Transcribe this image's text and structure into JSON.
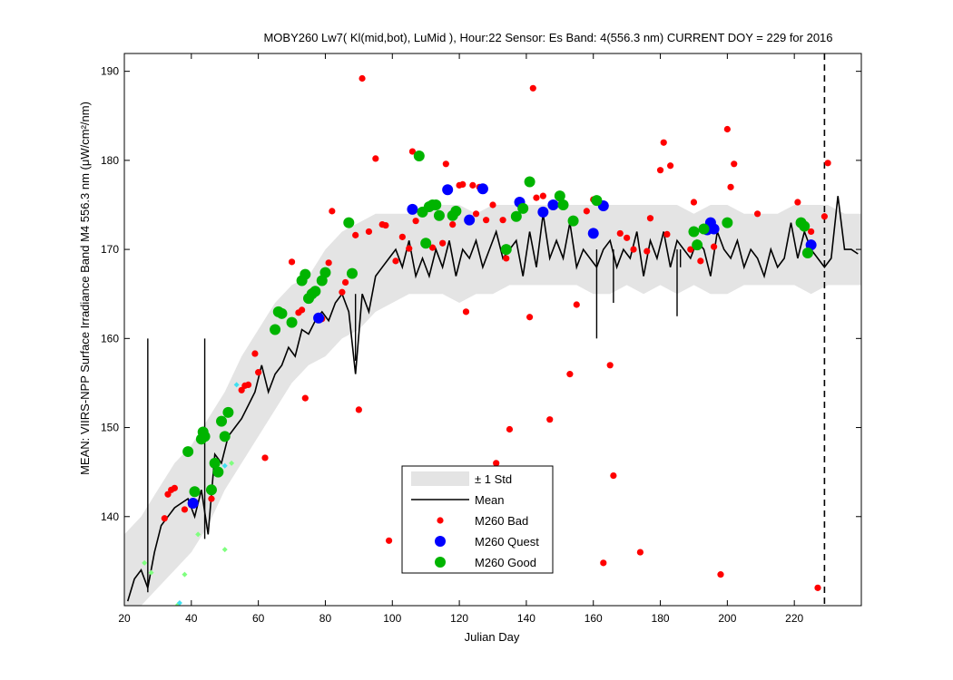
{
  "chart_data": {
    "type": "scatter",
    "title": "MOBY260   Lw7( Kl(mid,bot), LuMid ),   Hour:22 Sensor: Es Band: 4(556.3 nm)   CURRENT DOY = 229 for 2016",
    "xlabel": "Julian Day",
    "ylabel": "MEAN: VIIRS-NPP Surface Irradiance Band M4 556.3 nm (μW/cm²/nm)",
    "xlim": [
      20,
      240
    ],
    "ylim": [
      130,
      192
    ],
    "xticks": [
      20,
      40,
      60,
      80,
      100,
      120,
      140,
      160,
      180,
      200,
      220
    ],
    "yticks": [
      140,
      150,
      160,
      170,
      180,
      190
    ],
    "current_doy": 229,
    "legend": {
      "placement": "lower-center",
      "entries": [
        {
          "label": "± 1 Std",
          "kind": "band",
          "color": "#e4e4e4"
        },
        {
          "label": "Mean",
          "kind": "line",
          "color": "#000000"
        },
        {
          "label": "M260 Bad",
          "kind": "small-dot",
          "color": "#ff0000"
        },
        {
          "label": "M260 Quest",
          "kind": "big-dot",
          "color": "#0000ff"
        },
        {
          "label": "M260 Good",
          "kind": "big-dot",
          "color": "#00b400"
        }
      ]
    },
    "mean": {
      "x": [
        21,
        23,
        25,
        27,
        29,
        31,
        33,
        35,
        37,
        39,
        41,
        43,
        45,
        47,
        49,
        51,
        53,
        55,
        57,
        59,
        61,
        63,
        65,
        67,
        69,
        71,
        73,
        75,
        77,
        79,
        81,
        83,
        85,
        87,
        89,
        91,
        93,
        95,
        97,
        99,
        101,
        103,
        105,
        107,
        109,
        111,
        113,
        115,
        117,
        119,
        121,
        123,
        125,
        127,
        129,
        131,
        133,
        135,
        137,
        139,
        141,
        143,
        145,
        147,
        149,
        151,
        153,
        155,
        157,
        159,
        161,
        163,
        165,
        167,
        169,
        171,
        173,
        175,
        177,
        179,
        181,
        183,
        185,
        187,
        189,
        191,
        193,
        195,
        197,
        199,
        201,
        203,
        205,
        207,
        209,
        211,
        213,
        215,
        217,
        219,
        221,
        223,
        225,
        227,
        229,
        231,
        233,
        235,
        237,
        239
      ],
      "y": [
        130.5,
        133,
        134,
        132,
        136,
        139,
        140,
        141,
        141.5,
        142,
        140,
        143,
        138,
        147,
        146,
        149,
        150,
        151,
        152.5,
        154,
        157,
        154,
        156,
        157,
        159,
        158,
        161,
        160.5,
        162,
        163,
        162,
        164,
        165,
        163,
        156,
        165,
        163,
        167,
        168,
        169,
        170,
        168,
        171,
        167,
        169,
        167,
        170,
        168,
        171,
        167,
        170,
        169,
        171,
        168,
        170,
        172,
        169,
        170,
        171,
        167,
        172,
        168,
        174,
        169,
        171,
        169,
        173,
        168,
        170,
        169,
        168,
        170,
        171,
        168,
        170,
        169,
        172,
        167,
        171,
        169,
        172,
        168,
        171,
        170,
        169,
        171,
        170,
        167,
        172,
        170,
        169,
        171,
        168,
        170,
        169,
        167,
        170,
        168,
        169,
        173,
        169,
        172,
        170,
        169,
        168,
        169,
        176,
        170,
        170,
        169.5
      ],
      "spikes": [
        [
          27,
          131.5
        ],
        [
          44,
          137.5
        ],
        [
          89,
          157.5
        ],
        [
          161,
          160
        ],
        [
          166,
          164
        ],
        [
          185,
          162.5
        ],
        [
          186,
          168
        ]
      ]
    },
    "std_band": {
      "x": [
        20,
        25,
        30,
        35,
        40,
        45,
        50,
        55,
        60,
        65,
        70,
        75,
        80,
        85,
        90,
        95,
        100,
        105,
        110,
        115,
        120,
        125,
        130,
        135,
        140,
        145,
        150,
        155,
        160,
        165,
        170,
        175,
        180,
        185,
        190,
        195,
        200,
        205,
        210,
        215,
        220,
        225,
        230,
        235,
        240
      ],
      "lower": [
        130,
        130,
        132,
        134,
        136,
        139,
        143,
        146,
        149,
        152,
        155,
        157,
        158,
        160,
        161,
        163,
        164,
        165,
        165,
        165,
        164,
        165,
        165,
        166,
        166,
        166,
        166,
        166,
        165,
        165,
        166,
        165,
        166,
        165,
        166,
        165,
        165,
        166,
        166,
        166,
        166,
        165,
        166,
        166,
        166
      ],
      "upper": [
        138,
        140,
        143,
        146,
        148,
        151,
        154,
        158,
        161,
        164,
        166,
        167,
        170,
        172,
        173,
        174,
        174,
        174,
        175,
        175,
        175,
        174,
        175,
        175,
        175,
        175,
        175,
        175,
        175,
        175,
        175,
        175,
        175,
        175,
        174,
        175,
        175,
        174,
        174,
        174,
        175,
        175,
        175,
        174,
        174
      ]
    },
    "series": [
      {
        "name": "M260 Bad",
        "color": "#ff0000",
        "x": [
          32,
          33,
          34,
          35,
          38,
          40,
          46,
          55,
          56,
          57,
          59,
          60,
          62,
          70,
          72,
          73,
          74,
          76,
          79,
          81,
          82,
          85,
          86,
          89,
          90,
          91,
          93,
          95,
          97,
          98,
          99,
          101,
          103,
          105,
          106,
          107,
          112,
          115,
          116,
          118,
          120,
          121,
          122,
          124,
          125,
          126,
          128,
          130,
          131,
          133,
          134,
          135,
          141,
          142,
          143,
          145,
          147,
          150,
          153,
          155,
          158,
          160,
          163,
          165,
          166,
          168,
          170,
          172,
          174,
          176,
          177,
          180,
          181,
          182,
          183,
          189,
          190,
          192,
          196,
          198,
          200,
          201,
          202,
          209,
          221,
          225,
          227,
          229,
          230
        ],
        "y": [
          139.8,
          142.5,
          143,
          143.2,
          140.8,
          141.3,
          142,
          154.2,
          154.7,
          154.8,
          158.3,
          156.2,
          146.6,
          168.6,
          162.9,
          163.2,
          153.3,
          165.3,
          162.2,
          168.5,
          174.3,
          165.2,
          166.3,
          171.6,
          152,
          189.2,
          172,
          180.2,
          172.8,
          172.7,
          137.3,
          168.7,
          171.4,
          170.1,
          181,
          173.2,
          170.2,
          170.7,
          179.6,
          172.8,
          177.2,
          177.3,
          163,
          177.2,
          174,
          177,
          173.3,
          175,
          146,
          173.3,
          169,
          149.8,
          162.4,
          188.1,
          175.8,
          176,
          150.9,
          175.7,
          156,
          163.8,
          174.3,
          175.6,
          134.8,
          157,
          144.6,
          171.8,
          171.3,
          170,
          136,
          169.8,
          173.5,
          178.9,
          182,
          171.7,
          179.4,
          170,
          175.3,
          168.7,
          170.3,
          133.5,
          183.5,
          177,
          179.6,
          174,
          175.3,
          172,
          132,
          173.7,
          179.7
        ]
      },
      {
        "name": "M260 Quest",
        "color": "#0000ff",
        "x": [
          40.5,
          78,
          106,
          116.5,
          123,
          127,
          138,
          145,
          148,
          160,
          163,
          194,
          195,
          196,
          225
        ],
        "y": [
          141.5,
          162.3,
          174.5,
          176.7,
          173.3,
          176.8,
          175.3,
          174.2,
          175,
          171.8,
          174.9,
          172.2,
          173,
          172.3,
          170.5
        ]
      },
      {
        "name": "M260 Good",
        "color": "#00b400",
        "x": [
          39,
          41,
          43,
          43.5,
          44,
          46,
          47,
          48,
          49,
          50,
          51,
          65,
          66,
          67,
          70,
          73,
          74,
          75,
          76,
          77,
          79,
          80,
          87,
          88,
          108,
          109,
          110,
          111,
          112,
          113,
          114,
          118,
          119,
          134,
          137,
          139,
          141,
          150,
          151,
          154,
          161,
          190,
          191,
          193,
          200,
          222,
          223,
          224
        ],
        "y": [
          147.3,
          142.8,
          148.7,
          149.5,
          149,
          143,
          146,
          145,
          150.7,
          149,
          151.7,
          161,
          163,
          162.8,
          161.8,
          166.5,
          167.2,
          164.5,
          165,
          165.3,
          166.5,
          167.4,
          173,
          167.3,
          180.5,
          174.2,
          170.7,
          174.8,
          175,
          175,
          173.8,
          173.8,
          174.3,
          170,
          173.7,
          174.6,
          177.6,
          176,
          175,
          173.2,
          175.5,
          172,
          170.5,
          172.3,
          173,
          173,
          172.6,
          169.6
        ]
      },
      {
        "name": "Other",
        "color": "#7fff7f",
        "x": [
          26,
          28,
          36,
          38,
          42,
          50,
          52
        ],
        "y": [
          134.8,
          133.7,
          130.1,
          133.5,
          138,
          136.3,
          146
        ]
      },
      {
        "name": "Other Cyan",
        "color": "#40e0f0",
        "x": [
          36.5,
          53.5,
          50
        ],
        "y": [
          130.3,
          154.8,
          145.7
        ]
      }
    ]
  }
}
